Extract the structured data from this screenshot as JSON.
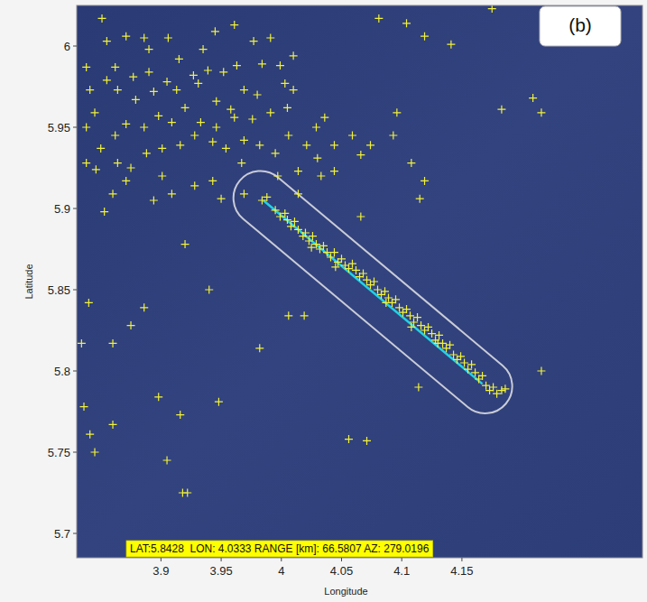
{
  "chart_data": {
    "type": "scatter",
    "panel_label": "(b)",
    "x_label": "Longitude",
    "y_label": "Latitude",
    "annotation": "LAT:5.8428  LON: 4.0333 RANGE [km]: 66.5807 AZ: 279.0196",
    "xlim": [
      3.83,
      4.3
    ],
    "ylim": [
      5.685,
      6.025
    ],
    "xticks": [
      3.9,
      3.95,
      4,
      4.05,
      4.1,
      4.15
    ],
    "yticks": [
      5.7,
      5.75,
      5.8,
      5.85,
      5.9,
      5.95,
      6
    ],
    "grid": false,
    "color": "#f2f23a",
    "marker": "plus",
    "x": [
      3.851,
      3.855,
      3.871,
      3.886,
      3.906,
      3.89,
      3.915,
      3.935,
      3.945,
      3.961,
      3.977,
      3.991,
      4.01,
      3.999,
      3.984,
      3.963,
      3.952,
      3.939,
      3.927,
      3.905,
      3.89,
      3.877,
      3.862,
      3.838,
      3.841,
      3.855,
      3.864,
      3.845,
      3.838,
      3.879,
      3.894,
      3.913,
      3.931,
      3.946,
      3.958,
      3.969,
      3.98,
      4.003,
      4.01,
      4.005,
      3.991,
      3.976,
      3.961,
      3.946,
      3.933,
      3.92,
      3.909,
      3.898,
      3.886,
      3.871,
      3.862,
      3.85,
      3.838,
      3.846,
      3.864,
      3.875,
      3.888,
      3.901,
      3.916,
      3.928,
      3.943,
      3.954,
      3.969,
      3.982,
      3.995,
      4.006,
      4.021,
      4.029,
      4.036,
      4.03,
      4.014,
      3.997,
      3.967,
      3.943,
      3.928,
      3.901,
      3.871,
      3.86,
      3.853,
      3.894,
      3.909,
      3.95,
      3.969,
      4.014,
      4.033,
      4.044,
      4.066,
      4.074,
      4.093,
      4.096,
      4.108,
      4.119,
      4.115,
      4.066,
      4.081,
      4.104,
      4.119,
      4.141,
      4.175,
      4.209,
      4.216,
      4.183,
      4.044,
      4.059,
      3.84,
      3.86,
      3.875,
      3.886,
      3.92,
      3.94,
      3.836,
      3.841,
      3.86,
      3.834,
      3.898,
      3.916,
      3.845,
      3.905,
      3.918,
      3.922,
      3.948,
      4.056,
      4.071,
      4.006,
      4.019,
      3.982,
      4.114,
      4.216,
      3.984,
      3.988,
      3.995,
      3.999,
      4.003,
      4.005,
      4.008,
      4.011,
      4.014,
      4.018,
      4.02,
      4.023,
      4.026,
      4.029,
      4.032,
      4.035,
      4.038,
      4.041,
      4.044,
      4.047,
      4.05,
      4.053,
      4.056,
      4.059,
      4.062,
      4.065,
      4.068,
      4.071,
      4.074,
      4.077,
      4.08,
      4.083,
      4.086,
      4.089,
      4.092,
      4.095,
      4.098,
      4.101,
      4.104,
      4.107,
      4.11,
      4.113,
      4.116,
      4.119,
      4.122,
      4.125,
      4.128,
      4.131,
      4.134,
      4.137,
      4.14,
      4.143,
      4.146,
      4.149,
      4.152,
      4.155,
      4.158,
      4.161,
      4.164,
      4.167,
      4.17,
      4.173,
      4.176,
      4.179,
      4.183,
      4.186,
      4.025,
      4.045,
      4.087,
      4.108,
      4.13
    ],
    "y": [
      6.017,
      6.003,
      6.006,
      6.005,
      6.005,
      5.998,
      5.992,
      5.998,
      6.009,
      6.013,
      6.003,
      6.005,
      5.994,
      5.988,
      5.989,
      5.988,
      5.984,
      5.985,
      5.982,
      5.978,
      5.984,
      5.981,
      5.987,
      5.987,
      5.973,
      5.979,
      5.973,
      5.959,
      5.95,
      5.967,
      5.972,
      5.973,
      5.977,
      5.966,
      5.961,
      5.973,
      5.97,
      5.977,
      5.973,
      5.962,
      5.959,
      5.955,
      5.956,
      5.95,
      5.953,
      5.962,
      5.953,
      5.957,
      5.95,
      5.952,
      5.945,
      5.937,
      5.928,
      5.924,
      5.928,
      5.925,
      5.934,
      5.937,
      5.939,
      5.945,
      5.941,
      5.937,
      5.942,
      5.939,
      5.934,
      5.945,
      5.939,
      5.95,
      5.956,
      5.931,
      5.923,
      5.92,
      5.928,
      5.917,
      5.914,
      5.92,
      5.917,
      5.909,
      5.898,
      5.905,
      5.909,
      5.906,
      5.909,
      5.909,
      5.92,
      5.923,
      5.933,
      5.939,
      5.945,
      5.959,
      5.928,
      5.917,
      5.906,
      5.895,
      6.017,
      6.014,
      6.006,
      6.001,
      6.023,
      5.968,
      5.959,
      5.961,
      5.939,
      5.945,
      5.842,
      5.817,
      5.828,
      5.839,
      5.878,
      5.85,
      5.778,
      5.761,
      5.767,
      5.817,
      5.784,
      5.773,
      5.75,
      5.745,
      5.725,
      5.725,
      5.781,
      5.758,
      5.757,
      5.834,
      5.834,
      5.814,
      5.79,
      5.8,
      5.905,
      5.907,
      5.899,
      5.895,
      5.897,
      5.893,
      5.889,
      5.892,
      5.887,
      5.883,
      5.885,
      5.88,
      5.883,
      5.878,
      5.875,
      5.877,
      5.873,
      5.87,
      5.873,
      5.867,
      5.869,
      5.865,
      5.863,
      5.866,
      5.862,
      5.858,
      5.86,
      5.856,
      5.853,
      5.855,
      5.85,
      5.847,
      5.849,
      5.845,
      5.842,
      5.844,
      5.839,
      5.836,
      5.838,
      5.834,
      5.83,
      5.833,
      5.828,
      5.825,
      5.827,
      5.823,
      5.819,
      5.822,
      5.817,
      5.814,
      5.816,
      5.81,
      5.807,
      5.809,
      5.805,
      5.801,
      5.804,
      5.799,
      5.795,
      5.797,
      5.791,
      5.788,
      5.79,
      5.786,
      5.788,
      5.789,
      5.876,
      5.864,
      5.842,
      5.827,
      5.817
    ],
    "track": {
      "color": "#1fd3e6",
      "x": [
        3.985,
        4.167
      ],
      "y": [
        5.905,
        5.792
      ]
    }
  }
}
